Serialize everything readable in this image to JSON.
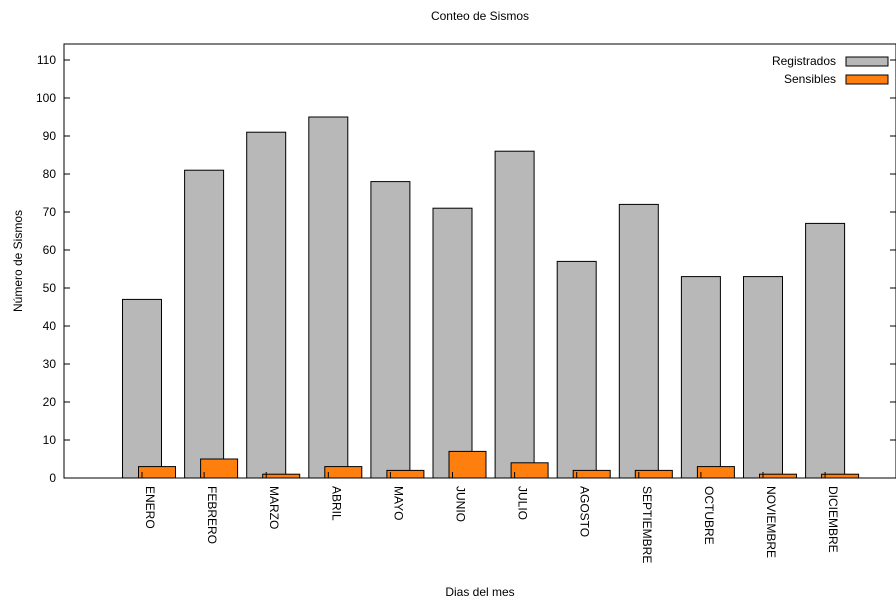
{
  "chart_data": {
    "type": "bar",
    "title": "Conteo de Sismos",
    "xlabel": "Dias del mes",
    "ylabel": "Número de Sismos",
    "ylim": [
      0,
      115
    ],
    "yticks": [
      0,
      10,
      20,
      30,
      40,
      50,
      60,
      70,
      80,
      90,
      100,
      110
    ],
    "grid": false,
    "legend_position": "top-right",
    "categories": [
      "ENERO",
      "FEBRERO",
      "MARZO",
      "ABRIL",
      "MAYO",
      "JUNIO",
      "JULIO",
      "AGOSTO",
      "SEPTIEMBRE",
      "OCTUBRE",
      "NOVIEMBRE",
      "DICIEMBRE"
    ],
    "series": [
      {
        "name": "Registrados",
        "color": "#b8b8b8",
        "values": [
          47,
          81,
          91,
          95,
          78,
          71,
          86,
          57,
          72,
          53,
          53,
          67
        ]
      },
      {
        "name": "Sensibles",
        "color": "#ff7f0e",
        "values": [
          3,
          5,
          1,
          3,
          2,
          7,
          4,
          2,
          2,
          3,
          1,
          1
        ]
      }
    ]
  }
}
